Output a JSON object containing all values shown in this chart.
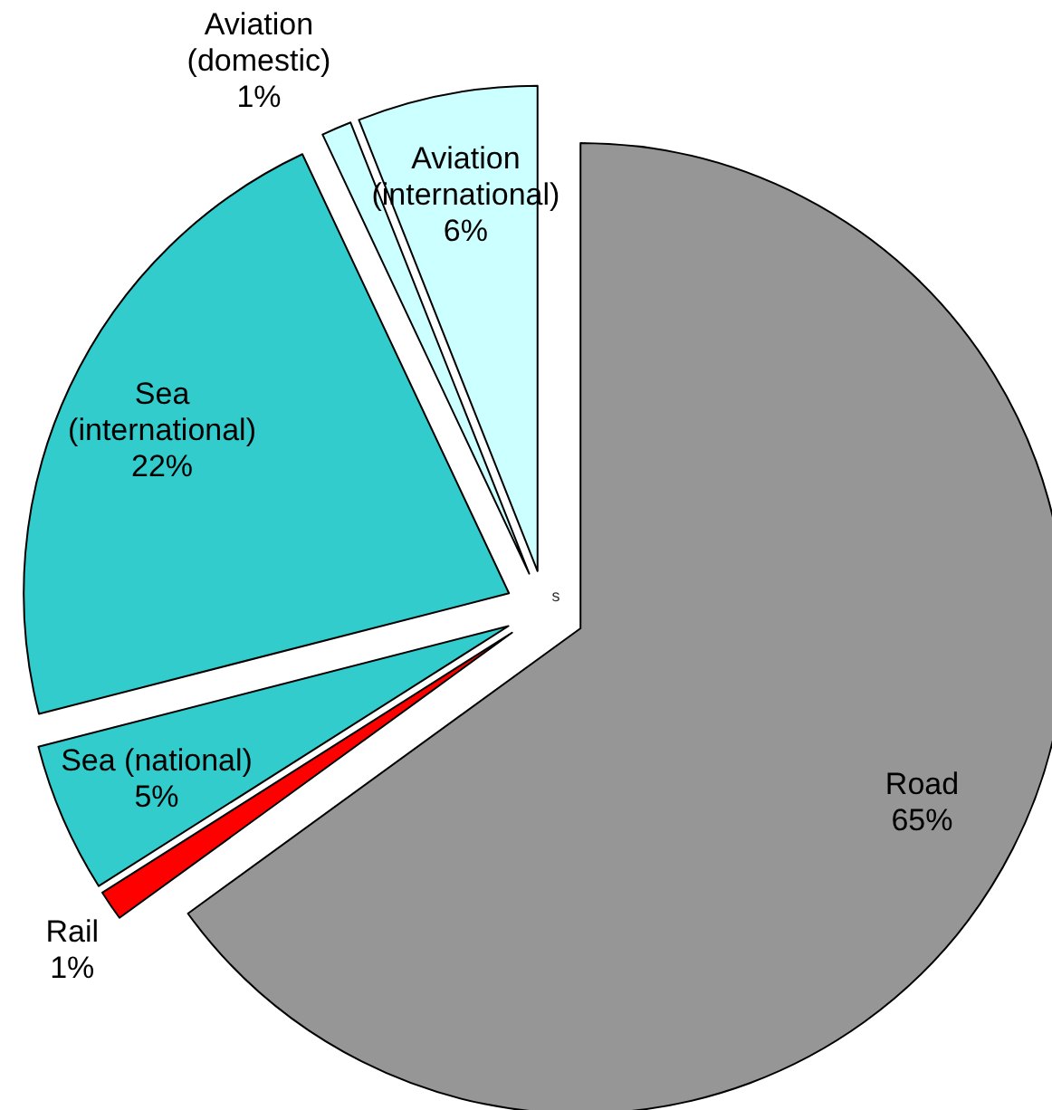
{
  "chart_data": {
    "type": "pie",
    "categories": [
      "Road",
      "Rail",
      "Sea (national)",
      "Sea (international)",
      "Aviation (domestic)",
      "Aviation (international)"
    ],
    "values": [
      65,
      1,
      5,
      22,
      1,
      6
    ],
    "value_labels": [
      "65%",
      "1%",
      "5%",
      "22%",
      "1%",
      "6%"
    ],
    "colors": [
      "#969696",
      "#ff0000",
      "#33cccc",
      "#33cccc",
      "#ccffff",
      "#ccffff"
    ],
    "annotations": [
      "s"
    ]
  }
}
